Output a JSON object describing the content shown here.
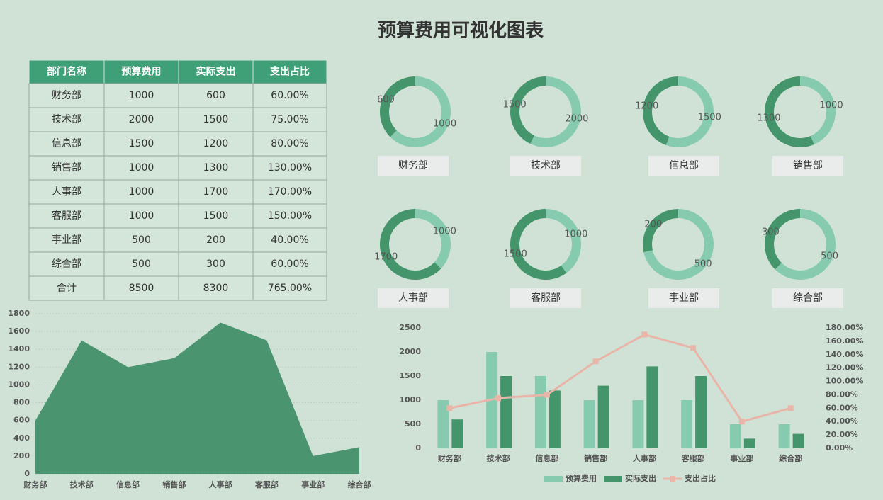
{
  "title": "预算费用可视化图表",
  "table": {
    "header": [
      "部门名称",
      "预算费用",
      "实际支出",
      "支出占比"
    ],
    "rows": [
      [
        "财务部",
        1000,
        600,
        "60.00%"
      ],
      [
        "技术部",
        2000,
        1500,
        "75.00%"
      ],
      [
        "信息部",
        1500,
        1200,
        "80.00%"
      ],
      [
        "销售部",
        1000,
        1300,
        "130.00%"
      ],
      [
        "人事部",
        1000,
        1700,
        "170.00%"
      ],
      [
        "客服部",
        1000,
        1500,
        "150.00%"
      ],
      [
        "事业部",
        500,
        200,
        "40.00%"
      ],
      [
        "综合部",
        500,
        300,
        "60.00%"
      ],
      [
        "合计",
        8500,
        8300,
        "765.00%"
      ]
    ]
  },
  "chart_data": [
    {
      "type": "donut",
      "title": "财务部",
      "values": [
        1000,
        600
      ],
      "colors": [
        "#86cbb0",
        "#45956c"
      ]
    },
    {
      "type": "donut",
      "title": "技术部",
      "values": [
        2000,
        1500
      ],
      "colors": [
        "#86cbb0",
        "#45956c"
      ]
    },
    {
      "type": "donut",
      "title": "信息部",
      "values": [
        1500,
        1200
      ],
      "colors": [
        "#86cbb0",
        "#45956c"
      ]
    },
    {
      "type": "donut",
      "title": "销售部",
      "values": [
        1000,
        1300
      ],
      "colors": [
        "#86cbb0",
        "#45956c"
      ]
    },
    {
      "type": "donut",
      "title": "人事部",
      "values": [
        1000,
        1700
      ],
      "colors": [
        "#86cbb0",
        "#45956c"
      ]
    },
    {
      "type": "donut",
      "title": "客服部",
      "values": [
        1000,
        1500
      ],
      "colors": [
        "#86cbb0",
        "#45956c"
      ]
    },
    {
      "type": "donut",
      "title": "事业部",
      "values": [
        500,
        200
      ],
      "colors": [
        "#86cbb0",
        "#45956c"
      ]
    },
    {
      "type": "donut",
      "title": "综合部",
      "values": [
        500,
        300
      ],
      "colors": [
        "#86cbb0",
        "#45956c"
      ]
    },
    {
      "type": "area",
      "categories": [
        "财务部",
        "技术部",
        "信息部",
        "销售部",
        "人事部",
        "客服部",
        "事业部",
        "综合部"
      ],
      "values": [
        600,
        1500,
        1200,
        1300,
        1700,
        1500,
        200,
        300
      ],
      "color": "#4a9470",
      "ylim": [
        0,
        1800
      ],
      "yticks": [
        0,
        200,
        400,
        600,
        800,
        1000,
        1200,
        1400,
        1600,
        1800
      ],
      "grid": true
    },
    {
      "type": "combo",
      "categories": [
        "财务部",
        "技术部",
        "信息部",
        "销售部",
        "人事部",
        "客服部",
        "事业部",
        "综合部"
      ],
      "series": [
        {
          "name": "预算费用",
          "kind": "bar",
          "color": "#86cbb0",
          "values": [
            1000,
            2000,
            1500,
            1000,
            1000,
            1000,
            500,
            500
          ]
        },
        {
          "name": "实际支出",
          "kind": "bar",
          "color": "#45956c",
          "values": [
            600,
            1500,
            1200,
            1300,
            1700,
            1500,
            200,
            300
          ]
        },
        {
          "name": "支出占比",
          "kind": "line",
          "axis": "y2",
          "color": "#e9b5a9",
          "values": [
            60,
            75,
            80,
            130,
            170,
            150,
            40,
            60
          ]
        }
      ],
      "ylim": [
        0,
        2500
      ],
      "yticks": [
        0,
        500,
        1000,
        1500,
        2000,
        2500
      ],
      "y2lim": [
        0,
        180
      ],
      "y2ticks": [
        {
          "value": 0,
          "label": "0.00%"
        },
        {
          "value": 20,
          "label": "20.00%"
        },
        {
          "value": 40,
          "label": "40.00%"
        },
        {
          "value": 60,
          "label": "60.00%"
        },
        {
          "value": 80,
          "label": "80.00%"
        },
        {
          "value": 100,
          "label": "100.00%"
        },
        {
          "value": 120,
          "label": "120.00%"
        },
        {
          "value": 140,
          "label": "140.00%"
        },
        {
          "value": 160,
          "label": "160.00%"
        },
        {
          "value": 180,
          "label": "180.00%"
        }
      ],
      "legend": "bottom"
    }
  ]
}
